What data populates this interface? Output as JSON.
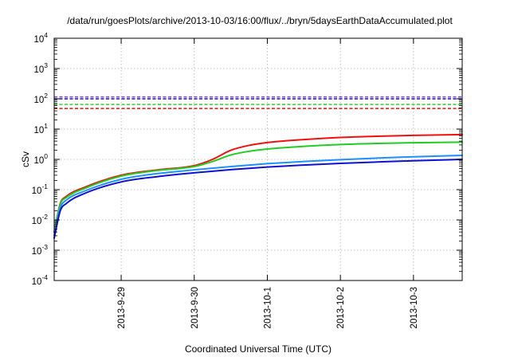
{
  "chart_data": {
    "type": "line",
    "title": "/data/run/goesPlots/archive/2013-10-03/16:00/flux/../bryn/5daysEarthDataAccumulated.plot",
    "xlabel": "Coordinated Universal Time (UTC)",
    "ylabel": "cSv",
    "y_scale": "log",
    "ylim": [
      0.0001,
      10000
    ],
    "y_ticks": [
      {
        "base": "10",
        "exp": "-4"
      },
      {
        "base": "10",
        "exp": "-3"
      },
      {
        "base": "10",
        "exp": "-2"
      },
      {
        "base": "10",
        "exp": "-1"
      },
      {
        "base": "10",
        "exp": "0"
      },
      {
        "base": "10",
        "exp": "1"
      },
      {
        "base": "10",
        "exp": "2"
      },
      {
        "base": "10",
        "exp": "3"
      },
      {
        "base": "10",
        "exp": "4"
      }
    ],
    "xlim": [
      "2013-09-28T02:00",
      "2013-10-03T16:00"
    ],
    "x_ticks": [
      "2013-9-29",
      "2013-9-30",
      "2013-10-1",
      "2013-10-2",
      "2013-10-3"
    ],
    "grid": true,
    "thresholds": [
      {
        "color": "#8b2be2",
        "value": 115
      },
      {
        "color": "#1010d0",
        "value": 100
      },
      {
        "color": "#22cc22",
        "value": 65
      },
      {
        "color": "#ee1111",
        "value": 48
      }
    ],
    "series": [
      {
        "color": "#ee1111",
        "x": [
          "2013-09-28T02:00",
          "2013-09-28T04:00",
          "2013-09-28T06:00",
          "2013-09-28T12:00",
          "2013-09-29T00:00",
          "2013-09-29T12:00",
          "2013-09-30T00:00",
          "2013-09-30T06:00",
          "2013-09-30T12:00",
          "2013-09-30T18:00",
          "2013-10-01T00:00",
          "2013-10-01T12:00",
          "2013-10-02T00:00",
          "2013-10-02T12:00",
          "2013-10-03T00:00",
          "2013-10-03T16:00"
        ],
        "y": [
          0.004,
          0.035,
          0.06,
          0.12,
          0.3,
          0.45,
          0.62,
          1.0,
          2.0,
          2.9,
          3.6,
          4.5,
          5.3,
          5.8,
          6.2,
          6.6
        ]
      },
      {
        "color": "#22cc22",
        "x": [
          "2013-09-28T02:00",
          "2013-09-28T04:00",
          "2013-09-28T06:00",
          "2013-09-28T12:00",
          "2013-09-29T00:00",
          "2013-09-29T12:00",
          "2013-09-30T00:00",
          "2013-09-30T06:00",
          "2013-09-30T12:00",
          "2013-09-30T18:00",
          "2013-10-01T00:00",
          "2013-10-01T12:00",
          "2013-10-02T00:00",
          "2013-10-02T12:00",
          "2013-10-03T00:00",
          "2013-10-03T16:00"
        ],
        "y": [
          0.004,
          0.033,
          0.055,
          0.11,
          0.28,
          0.43,
          0.58,
          0.85,
          1.4,
          1.85,
          2.2,
          2.7,
          3.1,
          3.35,
          3.55,
          3.7
        ]
      },
      {
        "color": "#1e90ff",
        "x": [
          "2013-09-28T02:00",
          "2013-09-28T04:00",
          "2013-09-28T06:00",
          "2013-09-28T12:00",
          "2013-09-29T00:00",
          "2013-09-29T12:00",
          "2013-09-30T00:00",
          "2013-09-30T12:00",
          "2013-10-01T00:00",
          "2013-10-01T12:00",
          "2013-10-02T00:00",
          "2013-10-02T12:00",
          "2013-10-03T00:00",
          "2013-10-03T16:00"
        ],
        "y": [
          0.003,
          0.025,
          0.045,
          0.09,
          0.22,
          0.34,
          0.45,
          0.58,
          0.72,
          0.85,
          0.98,
          1.1,
          1.22,
          1.35
        ]
      },
      {
        "color": "#1010d0",
        "x": [
          "2013-09-28T02:00",
          "2013-09-28T04:00",
          "2013-09-28T06:00",
          "2013-09-28T12:00",
          "2013-09-29T00:00",
          "2013-09-29T12:00",
          "2013-09-30T00:00",
          "2013-09-30T12:00",
          "2013-10-01T00:00",
          "2013-10-01T12:00",
          "2013-10-02T00:00",
          "2013-10-02T12:00",
          "2013-10-03T00:00",
          "2013-10-03T16:00"
        ],
        "y": [
          0.0025,
          0.02,
          0.035,
          0.075,
          0.18,
          0.27,
          0.36,
          0.46,
          0.56,
          0.65,
          0.74,
          0.82,
          0.9,
          1.0
        ]
      }
    ]
  }
}
